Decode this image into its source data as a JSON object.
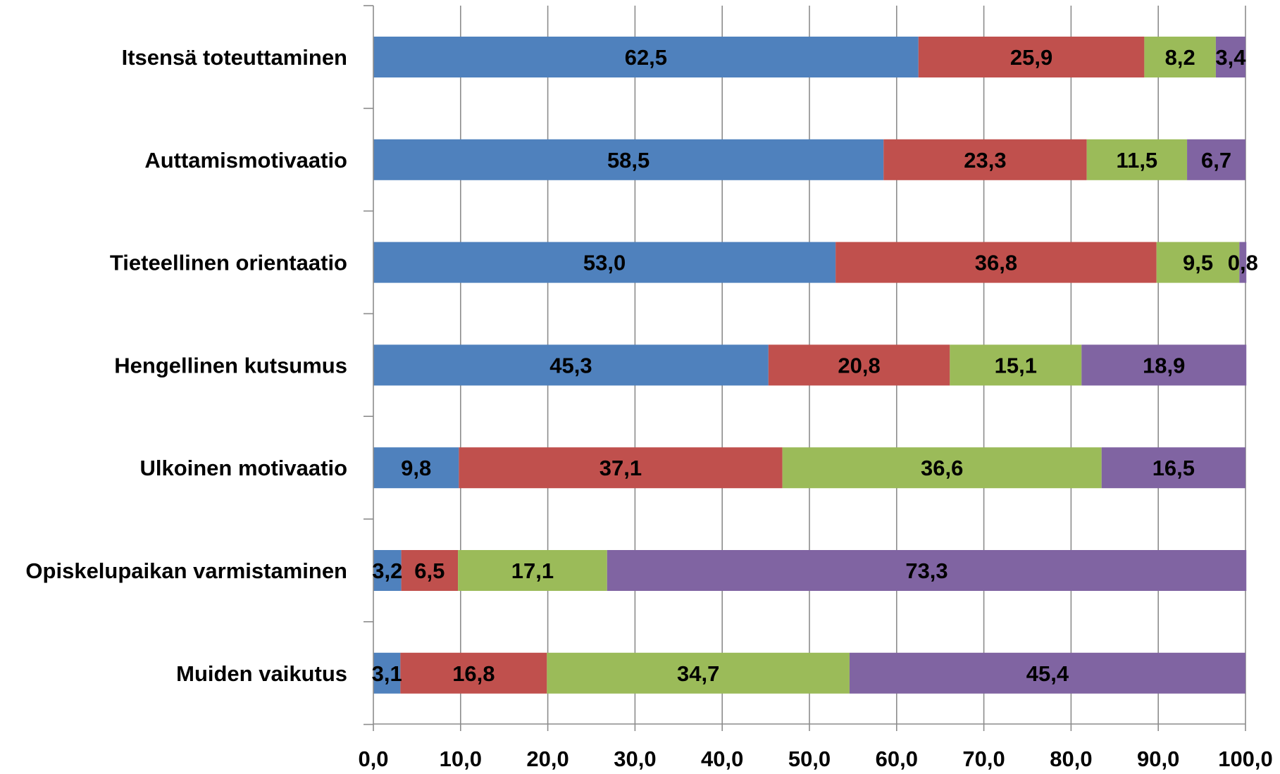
{
  "chart_data": {
    "type": "bar",
    "orientation": "horizontal",
    "stacked": true,
    "title": "",
    "xlabel": "",
    "ylabel": "",
    "xlim": [
      0,
      100
    ],
    "x_ticks": [
      "0,0",
      "10,0",
      "20,0",
      "30,0",
      "40,0",
      "50,0",
      "60,0",
      "70,0",
      "80,0",
      "90,0",
      "100,0"
    ],
    "grid": "vertical major gridlines on",
    "legend": "none",
    "categories": [
      "Itsensä toteuttaminen",
      "Auttamismotivaatio",
      "Tieteellinen orientaatio",
      "Hengellinen kutsumus",
      "Ulkoinen motivaatio",
      "Opiskelupaikan varmistaminen",
      "Muiden vaikutus"
    ],
    "series": [
      {
        "color": "#4f81bd",
        "values": [
          62.5,
          58.5,
          53.0,
          45.3,
          9.8,
          3.2,
          3.1
        ],
        "labels": [
          "62,5",
          "58,5",
          "53,0",
          "45,3",
          "9,8",
          "3,2",
          "3,1"
        ]
      },
      {
        "color": "#c0504d",
        "values": [
          25.9,
          23.3,
          36.8,
          20.8,
          37.1,
          6.5,
          16.8
        ],
        "labels": [
          "25,9",
          "23,3",
          "36,8",
          "20,8",
          "37,1",
          "6,5",
          "16,8"
        ]
      },
      {
        "color": "#9bbb59",
        "values": [
          8.2,
          11.5,
          9.5,
          15.1,
          36.6,
          17.1,
          34.7
        ],
        "labels": [
          "8,2",
          "11,5",
          "9,5",
          "15,1",
          "36,6",
          "17,1",
          "34,7"
        ]
      },
      {
        "color": "#8064a2",
        "values": [
          3.4,
          6.7,
          0.8,
          18.9,
          16.5,
          73.3,
          45.4
        ],
        "labels": [
          "3,4",
          "6,7",
          "0,8",
          "18,9",
          "16,5",
          "73,3",
          "45,4"
        ]
      }
    ]
  }
}
